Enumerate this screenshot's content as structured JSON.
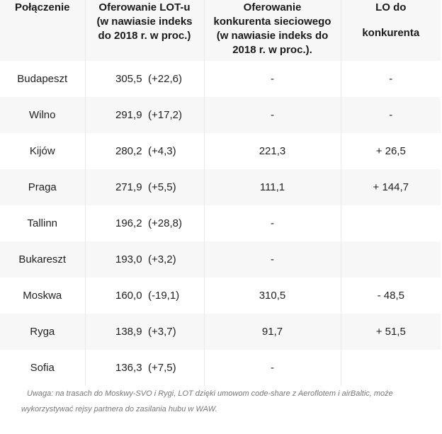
{
  "header": {
    "col1": "Połączenie",
    "col2": [
      "Oferowanie LOT-u",
      "(w nawiasie indeks",
      "do 2018 r. w proc.)"
    ],
    "col3": [
      "Oferowanie",
      "konkurenta sieciowego",
      "(w nawiasie indeks do",
      "2018 r. w proc.)."
    ],
    "col4": [
      "LO do",
      "konkurenta"
    ]
  },
  "rows": [
    {
      "city": "Budapeszt",
      "lot": "305,5",
      "idx": "(+22,6)",
      "comp": "-",
      "diff": "-"
    },
    {
      "city": "Wilno",
      "lot": "291,9",
      "idx": "(+17,2)",
      "comp": "-",
      "diff": "-"
    },
    {
      "city": "Kijów",
      "lot": "280,2",
      "idx": "(+4,3)",
      "comp": "221,3",
      "diff": "+ 26,5"
    },
    {
      "city": "Praga",
      "lot": "271,9",
      "idx": "(+5,5)",
      "comp": "111,1",
      "diff": "+ 144,7"
    },
    {
      "city": "Tallinn",
      "lot": "196,2",
      "idx": "(+28,8)",
      "comp": "-",
      "diff": ""
    },
    {
      "city": "Bukareszt",
      "lot": "193,0",
      "idx": "(+3,2)",
      "comp": "-",
      "diff": ""
    },
    {
      "city": "Moskwa",
      "lot": "160,0",
      "idx": "(-19,1)",
      "comp": "310,5",
      "diff": "- 48,5"
    },
    {
      "city": "Ryga",
      "lot": "138,9",
      "idx": "(+3,7)",
      "comp": "91,7",
      "diff": "+ 51,5"
    },
    {
      "city": "Sofia",
      "lot": "136,3",
      "idx": "(+7,5)",
      "comp": "-",
      "diff": ""
    }
  ],
  "note": {
    "line1": "Uwaga: na trasach do Moskwy-SVO i Rygi, LOT dzięki umowom code-share z Aeroflotem i airBaltic, może",
    "line2": "wykorzystywać rejsy partnera do zasilania hubu w WAW."
  }
}
